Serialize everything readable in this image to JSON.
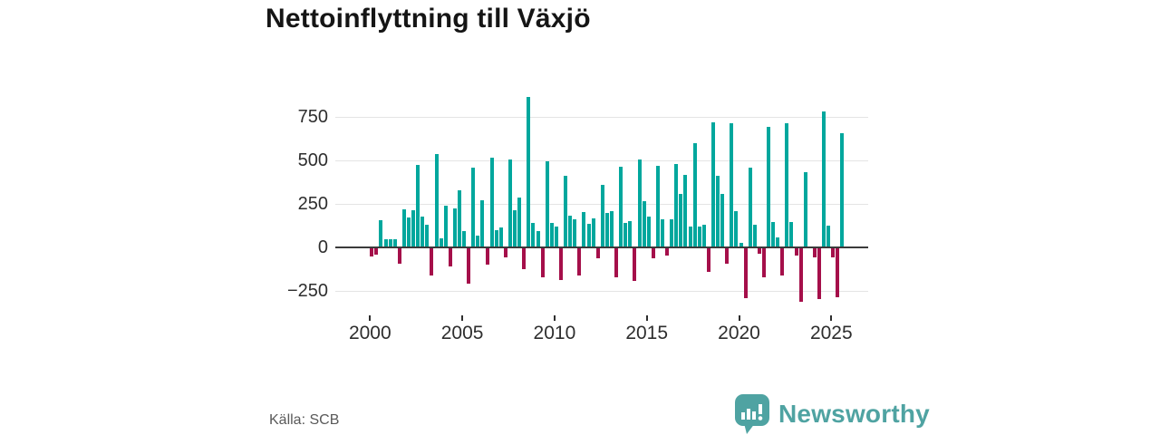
{
  "title": "Nettoinflyttning till Växjö",
  "source": "Källa: SCB",
  "logo": {
    "text": "Newsworthy",
    "icon": "speech-bubble-bar-chart-icon",
    "color": "#4fa3a2"
  },
  "chart_data": {
    "type": "bar",
    "title": "Nettoinflyttning till Växjö",
    "x_start": "2000 Q1",
    "frequency": "quarterly",
    "x_tick_years": [
      2000,
      2005,
      2010,
      2015,
      2020,
      2025
    ],
    "y_ticks": [
      {
        "value": 750,
        "label": "750"
      },
      {
        "value": 500,
        "label": "500"
      },
      {
        "value": 250,
        "label": "250"
      },
      {
        "value": 0,
        "label": "0"
      },
      {
        "value": -250,
        "label": "−250"
      }
    ],
    "ylim": [
      -350,
      1080
    ],
    "grid": "horizontal-only",
    "legend": "none",
    "colors": {
      "positive": "#00a79d",
      "negative": "#a50f4a"
    },
    "series": [
      {
        "name": "Nettoinflyttning per kvartal",
        "values": [
          -55,
          -40,
          155,
          45,
          45,
          45,
          -95,
          220,
          170,
          215,
          475,
          175,
          130,
          -160,
          535,
          50,
          240,
          -110,
          225,
          330,
          95,
          -210,
          460,
          70,
          270,
          -100,
          515,
          100,
          115,
          -60,
          505,
          215,
          285,
          -125,
          865,
          140,
          95,
          -175,
          495,
          140,
          120,
          -190,
          410,
          180,
          160,
          -160,
          205,
          135,
          165,
          -65,
          360,
          200,
          210,
          -175,
          465,
          140,
          150,
          -195,
          505,
          265,
          175,
          -65,
          470,
          160,
          -45,
          160,
          480,
          305,
          415,
          120,
          600,
          120,
          130,
          -140,
          720,
          410,
          305,
          -95,
          715,
          210,
          25,
          -295,
          460,
          130,
          -35,
          -175,
          695,
          145,
          55,
          -160,
          715,
          145,
          -45,
          -315,
          435,
          0,
          -60,
          -300,
          785,
          125,
          -60,
          -290,
          655
        ]
      }
    ]
  }
}
